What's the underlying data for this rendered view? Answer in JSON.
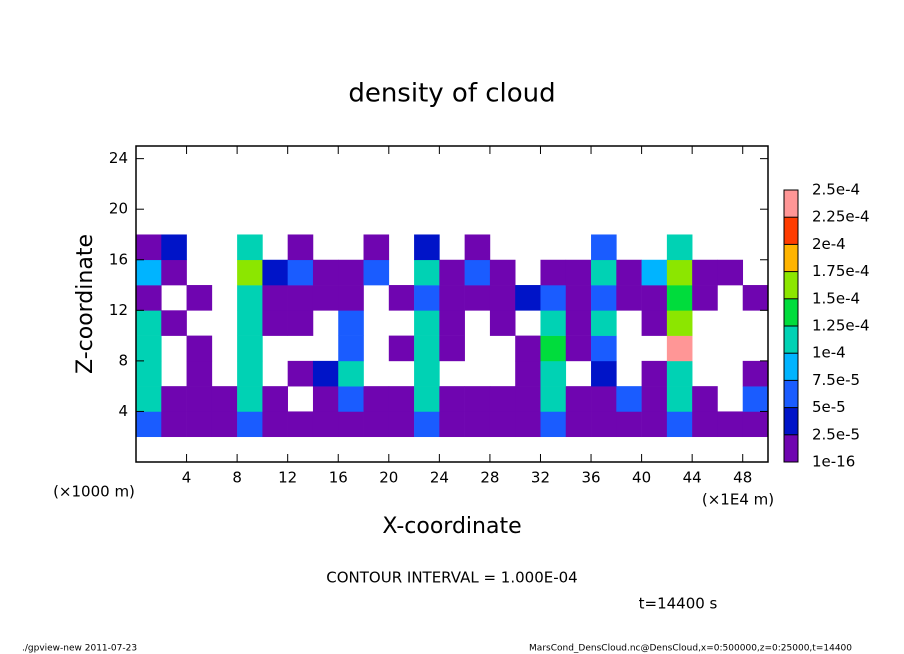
{
  "chart_data": {
    "type": "heatmap",
    "title": "density of cloud",
    "x_label": "X-coordinate",
    "y_label": "Z-coordinate",
    "x_unit": "(×1E4 m)",
    "y_unit": "(×1000 m)",
    "note": "CONTOUR INTERVAL = 1.000E-04",
    "time": "t=14400 s",
    "footer_left": "./gpview-new  2011-07-23",
    "footer_right": "MarsCond_DensCloud.nc@DensCloud,x=0:500000,z=0:25000,t=14400",
    "xlim": [
      0,
      50
    ],
    "ylim": [
      0,
      25
    ],
    "xticks": [
      4,
      8,
      12,
      16,
      20,
      24,
      28,
      32,
      36,
      40,
      44,
      48
    ],
    "yticks": [
      4,
      8,
      12,
      16,
      20,
      24
    ],
    "x_edges": [
      0,
      2,
      4,
      6,
      8,
      10,
      12,
      14,
      16,
      18,
      20,
      22,
      24,
      26,
      28,
      30,
      32,
      34,
      36,
      38,
      40,
      42,
      44,
      46,
      48,
      50
    ],
    "z_edges": [
      2,
      4,
      6,
      8,
      10,
      12,
      14,
      16,
      18
    ],
    "values": [
      [
        6e-05,
        1e-05,
        1e-05,
        1e-05,
        6e-05,
        1e-05,
        1e-05,
        1e-05,
        1e-05,
        1e-05,
        1e-05,
        6e-05,
        1e-05,
        1e-05,
        1e-05,
        1e-05,
        6e-05,
        1e-05,
        1e-05,
        1e-05,
        1e-05,
        6e-05,
        1e-05,
        1e-05,
        1e-05
      ],
      [
        0.00011,
        1e-05,
        1e-05,
        1e-05,
        0.00011,
        1e-05,
        null,
        1e-05,
        6e-05,
        1e-05,
        1e-05,
        0.00011,
        1e-05,
        1e-05,
        1e-05,
        1e-05,
        0.00011,
        1e-05,
        1e-05,
        6e-05,
        1e-05,
        0.00011,
        1e-05,
        null,
        6e-05
      ],
      [
        0.00011,
        null,
        1e-05,
        null,
        0.00011,
        null,
        1e-05,
        3e-05,
        0.00011,
        null,
        null,
        0.00011,
        null,
        null,
        null,
        1e-05,
        0.00011,
        null,
        3e-05,
        null,
        1e-05,
        0.00011,
        null,
        null,
        1e-05
      ],
      [
        0.00011,
        null,
        1e-05,
        null,
        0.00011,
        null,
        null,
        null,
        6e-05,
        null,
        1e-05,
        0.00011,
        1e-05,
        null,
        null,
        1e-05,
        0.00013,
        1e-05,
        6e-05,
        null,
        null,
        0.00023,
        null,
        null,
        null
      ],
      [
        0.00011,
        1e-05,
        null,
        null,
        0.00011,
        1e-05,
        1e-05,
        null,
        6e-05,
        null,
        null,
        0.00011,
        1e-05,
        null,
        1e-05,
        null,
        0.00011,
        1e-05,
        0.00011,
        null,
        1e-05,
        0.00016,
        null,
        null,
        null
      ],
      [
        1e-05,
        null,
        1e-05,
        null,
        0.00011,
        1e-05,
        1e-05,
        1e-05,
        1e-05,
        null,
        1e-05,
        6e-05,
        1e-05,
        1e-05,
        1e-05,
        3e-05,
        6e-05,
        1e-05,
        6e-05,
        1e-05,
        1e-05,
        0.00013,
        1e-05,
        null,
        1e-05
      ],
      [
        8e-05,
        1e-05,
        null,
        null,
        0.00016,
        3e-05,
        6e-05,
        1e-05,
        1e-05,
        6e-05,
        null,
        0.00011,
        1e-05,
        6e-05,
        1e-05,
        null,
        1e-05,
        1e-05,
        0.00011,
        1e-05,
        8e-05,
        0.00016,
        1e-05,
        1e-05,
        null
      ],
      [
        1e-05,
        3e-05,
        null,
        null,
        0.00011,
        null,
        1e-05,
        null,
        null,
        1e-05,
        null,
        3e-05,
        null,
        1e-05,
        null,
        null,
        null,
        null,
        6e-05,
        null,
        null,
        0.00011,
        null,
        null,
        null
      ]
    ],
    "levels": [
      1e-16,
      {
        "value": 2.5e-05,
        "label": "2.5e-5"
      },
      {
        "value": 5e-05,
        "label": "5e-5"
      },
      {
        "value": 7.5e-05,
        "label": "7.5e-5"
      },
      {
        "value": 0.0001,
        "label": "1e-4"
      },
      {
        "value": 0.000125,
        "label": "1.25e-4"
      },
      {
        "value": 0.00015,
        "label": "1.5e-4"
      },
      {
        "value": 0.000175,
        "label": "1.75e-4"
      },
      {
        "value": 0.0002,
        "label": "2e-4"
      },
      {
        "value": 0.000225,
        "label": "2.25e-4"
      },
      {
        "value": 0.00025,
        "label": "2.5e-4"
      }
    ],
    "colors": [
      "#6f05b0",
      "#0014c8",
      "#1a5cff",
      "#00b4ff",
      "#00d2b4",
      "#00dc3c",
      "#8ce600",
      "#ffb400",
      "#ff3c00",
      "#ff9696"
    ]
  }
}
